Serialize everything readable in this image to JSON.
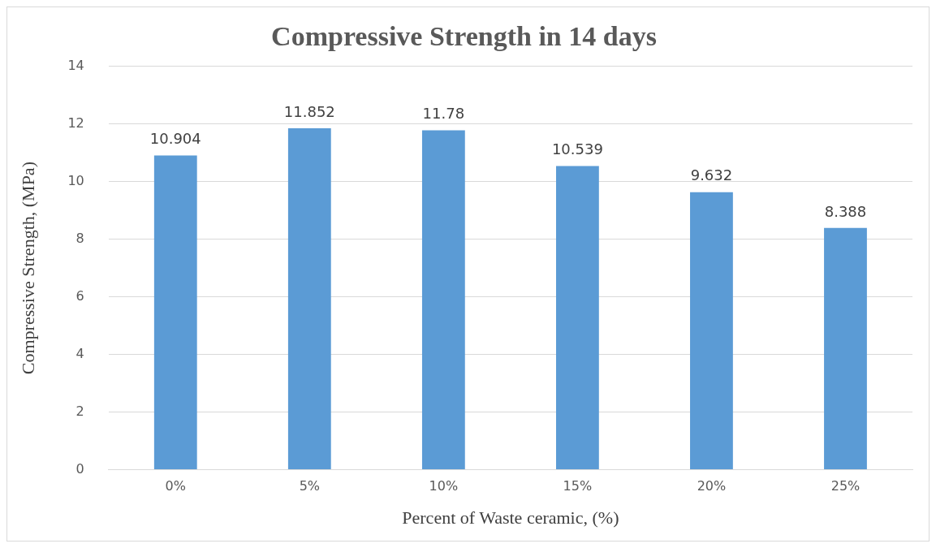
{
  "chart_data": {
    "type": "bar",
    "title": "Compressive Strength in 14 days",
    "xlabel": "Percent of Waste ceramic, (%)",
    "ylabel": "Compressive Strength, (MPa)",
    "categories": [
      "0%",
      "5%",
      "10%",
      "15%",
      "20%",
      "25%"
    ],
    "values": [
      10.904,
      11.852,
      11.78,
      10.539,
      9.632,
      8.388
    ],
    "color": "#5b9bd5",
    "ylim": [
      0,
      14
    ],
    "yticks": [
      0,
      2,
      4,
      6,
      8,
      10,
      12,
      14
    ],
    "grid": "y",
    "data_labels": true
  }
}
